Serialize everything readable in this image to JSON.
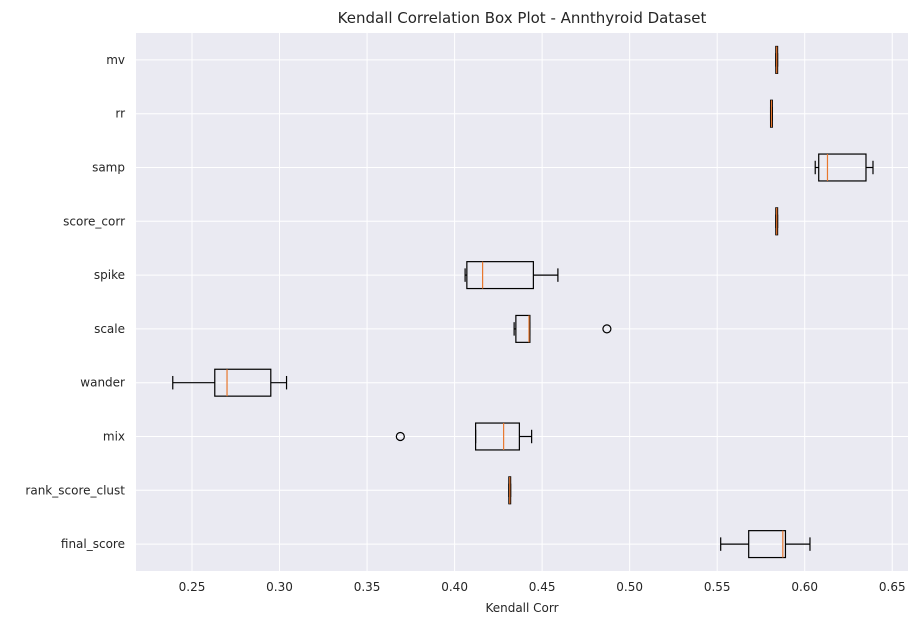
{
  "chart_data": {
    "type": "box",
    "orientation": "horizontal",
    "title": "Kendall Correlation Box Plot - Annthyroid Dataset",
    "xlabel": "Kendall Corr",
    "ylabel": "",
    "xlim": [
      0.218,
      0.659
    ],
    "xticks": [
      0.25,
      0.3,
      0.35,
      0.4,
      0.45,
      0.5,
      0.55,
      0.6,
      0.65
    ],
    "xtick_labels": [
      "0.25",
      "0.30",
      "0.35",
      "0.40",
      "0.45",
      "0.50",
      "0.55",
      "0.60",
      "0.65"
    ],
    "grid": true,
    "colors": {
      "background": "#eaeaf2",
      "grid": "#ffffff",
      "box": "#000000",
      "median": "#e8772e",
      "text": "#262626"
    },
    "categories": [
      "mv",
      "rr",
      "samp",
      "score_corr",
      "spike",
      "scale",
      "wander",
      "mix",
      "rank_score_clust",
      "final_score"
    ],
    "boxes": [
      {
        "label": "mv",
        "whisker_low": 0.5835,
        "q1": 0.5835,
        "median": 0.584,
        "q3": 0.5845,
        "whisker_high": 0.5845,
        "outliers": []
      },
      {
        "label": "rr",
        "whisker_low": 0.5805,
        "q1": 0.5805,
        "median": 0.581,
        "q3": 0.5815,
        "whisker_high": 0.5815,
        "outliers": []
      },
      {
        "label": "samp",
        "whisker_low": 0.606,
        "q1": 0.608,
        "median": 0.613,
        "q3": 0.635,
        "whisker_high": 0.639,
        "outliers": []
      },
      {
        "label": "score_corr",
        "whisker_low": 0.5835,
        "q1": 0.5835,
        "median": 0.584,
        "q3": 0.5845,
        "whisker_high": 0.5845,
        "outliers": []
      },
      {
        "label": "spike",
        "whisker_low": 0.406,
        "q1": 0.407,
        "median": 0.416,
        "q3": 0.445,
        "whisker_high": 0.459,
        "outliers": []
      },
      {
        "label": "scale",
        "whisker_low": 0.434,
        "q1": 0.435,
        "median": 0.4425,
        "q3": 0.443,
        "whisker_high": 0.443,
        "outliers": [
          0.487
        ]
      },
      {
        "label": "wander",
        "whisker_low": 0.239,
        "q1": 0.263,
        "median": 0.27,
        "q3": 0.295,
        "whisker_high": 0.304,
        "outliers": []
      },
      {
        "label": "mix",
        "whisker_low": 0.412,
        "q1": 0.412,
        "median": 0.428,
        "q3": 0.437,
        "whisker_high": 0.444,
        "outliers": [
          0.369
        ]
      },
      {
        "label": "rank_score_clust",
        "whisker_low": 0.431,
        "q1": 0.431,
        "median": 0.4315,
        "q3": 0.432,
        "whisker_high": 0.432,
        "outliers": []
      },
      {
        "label": "final_score",
        "whisker_low": 0.552,
        "q1": 0.568,
        "median": 0.5875,
        "q3": 0.589,
        "whisker_high": 0.603,
        "outliers": []
      }
    ]
  }
}
